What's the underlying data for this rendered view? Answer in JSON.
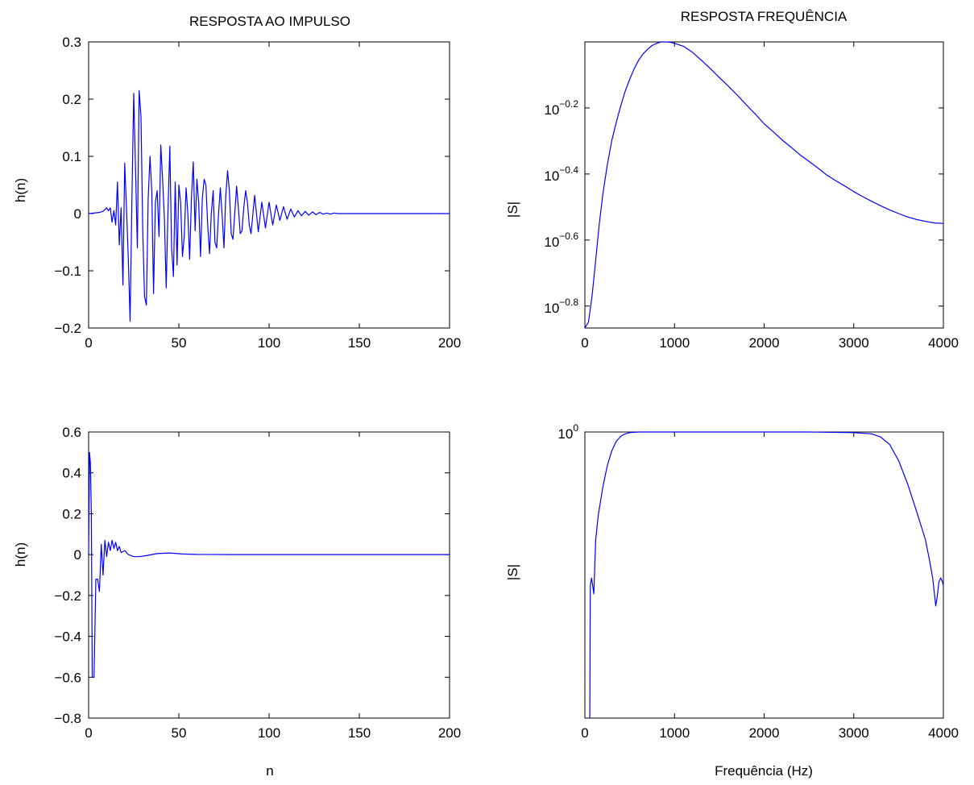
{
  "colors": {
    "series": "#0000ff",
    "axis": "#000000",
    "background": "#ffffff"
  },
  "chart_data": [
    {
      "id": "impulse-top",
      "type": "line",
      "title": "RESPOSTA AO IMPULSO",
      "xlabel": "",
      "ylabel": "h(n)",
      "xlim": [
        0,
        200
      ],
      "ylim": [
        -0.2,
        0.3
      ],
      "yscale": "linear",
      "xticks": [
        0,
        50,
        100,
        150,
        200
      ],
      "xtick_labels": [
        "0",
        "50",
        "100",
        "150",
        "200"
      ],
      "yticks": [
        -0.2,
        -0.1,
        0,
        0.1,
        0.2,
        0.3
      ],
      "ytick_labels": [
        "−0.2",
        "−0.1",
        "0",
        "0.1",
        "0.2",
        "0.3"
      ],
      "grid": false,
      "series": [
        {
          "x": [
            0,
            6,
            8,
            10,
            11,
            12,
            13,
            14,
            15,
            16,
            17,
            18,
            19,
            20,
            21,
            22,
            23,
            24,
            25,
            26,
            27,
            28,
            29,
            30,
            31,
            32,
            33,
            34,
            35,
            36,
            37,
            38,
            39,
            40,
            41,
            42,
            43,
            44,
            45,
            46,
            47,
            48,
            49,
            50,
            51,
            52,
            53,
            54,
            55,
            56,
            57,
            58,
            59,
            60,
            61,
            62,
            63,
            64,
            65,
            66,
            67,
            68,
            69,
            70,
            71,
            72,
            73,
            74,
            75,
            76,
            77,
            78,
            79,
            80,
            81,
            82,
            83,
            84,
            85,
            86,
            87,
            88,
            89,
            90,
            92,
            94,
            96,
            98,
            100,
            102,
            104,
            106,
            108,
            110,
            112,
            114,
            116,
            118,
            120,
            122,
            124,
            126,
            128,
            130,
            132,
            134,
            136,
            138,
            140,
            145,
            150,
            160,
            170,
            180,
            190,
            200
          ],
          "y": [
            0,
            0.002,
            0.004,
            0.01,
            0.005,
            0.01,
            -0.015,
            0.005,
            -0.02,
            0.055,
            -0.055,
            0.01,
            -0.125,
            0.088,
            0.01,
            -0.08,
            -0.188,
            0.03,
            0.21,
            0.08,
            -0.06,
            0.215,
            0.17,
            -0.03,
            -0.145,
            -0.16,
            0.025,
            0.1,
            0.04,
            -0.14,
            0.02,
            0.04,
            -0.04,
            0.12,
            0.06,
            -0.01,
            -0.13,
            0.01,
            0.118,
            -0.06,
            -0.11,
            0.055,
            -0.09,
            0.05,
            0.02,
            -0.075,
            -0.04,
            0.045,
            0,
            -0.08,
            0.03,
            0.09,
            -0.03,
            0.06,
            0.02,
            -0.075,
            0.025,
            0.06,
            0.05,
            -0.02,
            -0.07,
            0,
            0.04,
            -0.05,
            -0.06,
            0,
            0.045,
            -0.005,
            -0.06,
            0.03,
            0.075,
            0.04,
            -0.035,
            -0.045,
            0,
            0.048,
            0.01,
            -0.035,
            -0.03,
            0.01,
            0.04,
            0.02,
            -0.02,
            -0.035,
            0.032,
            -0.032,
            0.02,
            -0.025,
            0.02,
            -0.02,
            0.015,
            -0.012,
            0.012,
            -0.01,
            0.008,
            -0.006,
            0.005,
            -0.004,
            0.004,
            -0.003,
            0.003,
            -0.002,
            0.002,
            -0.001,
            0.001,
            -0.001,
            0.001,
            0,
            0,
            0,
            0,
            0,
            0,
            0,
            0,
            0
          ]
        }
      ]
    },
    {
      "id": "freq-top",
      "type": "line",
      "title": "RESPOSTA FREQUÊNCIA",
      "xlabel": "",
      "ylabel": "|S|",
      "xlim": [
        0,
        4000
      ],
      "yscale": "log",
      "ylim": [
        0.136,
        1.0
      ],
      "xticks": [
        0,
        1000,
        2000,
        3000,
        4000
      ],
      "xtick_labels": [
        "0",
        "1000",
        "2000",
        "3000",
        "4000"
      ],
      "yticks": [
        0.1585,
        0.2512,
        0.3981,
        0.631
      ],
      "ytick_labels": [
        {
          "base": "10",
          "exp": "−0.8"
        },
        {
          "base": "10",
          "exp": "−0.6"
        },
        {
          "base": "10",
          "exp": "−0.4"
        },
        {
          "base": "10",
          "exp": "−0.2"
        }
      ],
      "grid": false,
      "series": [
        {
          "x": [
            0,
            40,
            80,
            120,
            160,
            200,
            250,
            300,
            350,
            400,
            450,
            500,
            550,
            600,
            650,
            700,
            750,
            800,
            850,
            900,
            950,
            1000,
            1100,
            1200,
            1300,
            1400,
            1500,
            1600,
            1700,
            1800,
            1900,
            2000,
            2100,
            2200,
            2300,
            2400,
            2500,
            2600,
            2700,
            2800,
            2900,
            3000,
            3100,
            3200,
            3300,
            3400,
            3500,
            3600,
            3700,
            3800,
            3900,
            4000
          ],
          "y": [
            0.136,
            0.142,
            0.17,
            0.218,
            0.28,
            0.346,
            0.424,
            0.503,
            0.57,
            0.64,
            0.71,
            0.77,
            0.83,
            0.88,
            0.92,
            0.95,
            0.975,
            0.99,
            1.0,
            1.0,
            0.998,
            0.99,
            0.97,
            0.93,
            0.88,
            0.83,
            0.78,
            0.735,
            0.69,
            0.645,
            0.605,
            0.565,
            0.535,
            0.505,
            0.48,
            0.455,
            0.435,
            0.415,
            0.395,
            0.38,
            0.366,
            0.352,
            0.34,
            0.329,
            0.319,
            0.31,
            0.302,
            0.295,
            0.29,
            0.286,
            0.283,
            0.282
          ]
        }
      ]
    },
    {
      "id": "impulse-bottom",
      "type": "line",
      "title": "",
      "xlabel": "n",
      "ylabel": "h(n)",
      "xlim": [
        0,
        200
      ],
      "ylim": [
        -0.8,
        0.6
      ],
      "yscale": "linear",
      "xticks": [
        0,
        50,
        100,
        150,
        200
      ],
      "xtick_labels": [
        "0",
        "50",
        "100",
        "150",
        "200"
      ],
      "yticks": [
        -0.8,
        -0.6,
        -0.4,
        -0.2,
        0,
        0.2,
        0.4,
        0.6
      ],
      "ytick_labels": [
        "−0.8",
        "−0.6",
        "−0.4",
        "−0.2",
        "0",
        "0.2",
        "0.4",
        "0.6"
      ],
      "grid": false,
      "series": [
        {
          "x": [
            0,
            0.5,
            1,
            1.5,
            2,
            3,
            4,
            5,
            6,
            7,
            8,
            9,
            10,
            11,
            12,
            13,
            14,
            15,
            16,
            17,
            18,
            20,
            22,
            25,
            28,
            32,
            38,
            45,
            52,
            60,
            80,
            100,
            150,
            200
          ],
          "y": [
            0,
            0.5,
            0.45,
            0.2,
            -0.6,
            -0.6,
            -0.12,
            -0.12,
            -0.18,
            0.05,
            -0.1,
            0.07,
            -0.01,
            0.06,
            0.02,
            0.07,
            0.03,
            0.06,
            0.02,
            0.04,
            0.01,
            0.02,
            0,
            -0.01,
            -0.01,
            -0.005,
            0.005,
            0.008,
            0.003,
            0.001,
            0,
            0,
            0,
            0
          ]
        }
      ]
    },
    {
      "id": "freq-bottom",
      "type": "line",
      "title": "",
      "xlabel": "Frequência (Hz)",
      "ylabel": "|S|",
      "xlim": [
        0,
        4000
      ],
      "yscale": "log",
      "ylim": [
        0.63,
        1.0
      ],
      "xticks": [
        0,
        1000,
        2000,
        3000,
        4000
      ],
      "xtick_labels": [
        "0",
        "1000",
        "2000",
        "3000",
        "4000"
      ],
      "yticks": [
        1.0
      ],
      "ytick_labels": [
        {
          "base": "10",
          "exp": "0"
        }
      ],
      "grid": false,
      "series": [
        {
          "x": [
            55,
            60,
            75,
            100,
            120,
            150,
            200,
            250,
            300,
            350,
            400,
            450,
            500,
            600,
            800,
            1000,
            1500,
            2000,
            2500,
            3000,
            3200,
            3300,
            3400,
            3500,
            3600,
            3700,
            3750,
            3800,
            3850,
            3880,
            3900,
            3915,
            3930,
            3950,
            3970,
            3990,
            4000
          ],
          "y": [
            0.63,
            0.78,
            0.79,
            0.77,
            0.84,
            0.875,
            0.915,
            0.947,
            0.97,
            0.985,
            0.993,
            0.997,
            0.999,
            1.0,
            1.0,
            1.0,
            1.0,
            1.0,
            1.0,
            0.999,
            0.997,
            0.992,
            0.98,
            0.955,
            0.92,
            0.88,
            0.86,
            0.84,
            0.81,
            0.79,
            0.77,
            0.755,
            0.765,
            0.785,
            0.79,
            0.785,
            0.78
          ]
        }
      ]
    }
  ]
}
